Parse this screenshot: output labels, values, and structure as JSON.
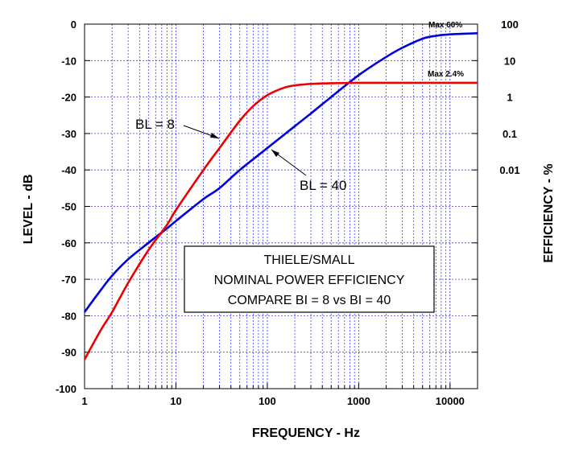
{
  "chart_data": {
    "type": "line",
    "title_box": [
      "THIELE/SMALL",
      "NOMINAL POWER EFFICIENCY",
      "COMPARE BI = 8 vs BI = 40"
    ],
    "xlabel": "FREQUENCY - Hz",
    "ylabel": "LEVEL - dB",
    "y2label": "EFFICIENCY - %",
    "x_scale": "log",
    "xlim": [
      1,
      20000
    ],
    "ylim": [
      -100,
      0
    ],
    "x_ticks": [
      "1",
      "10",
      "100",
      "1000",
      "10000"
    ],
    "y_ticks": [
      "0",
      "-10",
      "-20",
      "-30",
      "-40",
      "-50",
      "-60",
      "-70",
      "-80",
      "-90",
      "-100"
    ],
    "y2_ticks": [
      "100",
      "10",
      "1",
      "0.1",
      "0.01"
    ],
    "grid": true,
    "annotations": [
      {
        "text": "BL = 8",
        "series": "red"
      },
      {
        "text": "BL = 40",
        "series": "blue"
      },
      {
        "text": "Max 60%",
        "series": "blue"
      },
      {
        "text": "Max 2.4%",
        "series": "red"
      }
    ],
    "series": [
      {
        "color": "#0000dd",
        "x": [
          1,
          1.5,
          2,
          3,
          5,
          8,
          10,
          20,
          30,
          50,
          100,
          200,
          300,
          500,
          1000,
          2000,
          3000,
          5000,
          7000,
          10000,
          15000,
          20000
        ],
        "y": [
          -79,
          -73,
          -69,
          -64.5,
          -60,
          -56,
          -54,
          -48,
          -45,
          -40,
          -34,
          -28,
          -24.5,
          -20,
          -14,
          -9,
          -6.5,
          -4,
          -3.2,
          -2.8,
          -2.6,
          -2.5
        ]
      },
      {
        "color": "#ee0000",
        "x": [
          1,
          1.5,
          2,
          3,
          5,
          8,
          10,
          20,
          30,
          50,
          70,
          100,
          150,
          200,
          300,
          500,
          1000,
          2000,
          5000,
          10000,
          20000
        ],
        "y": [
          -92,
          -84,
          -79,
          -71,
          -62,
          -55,
          -51,
          -40,
          -34,
          -26.5,
          -22.5,
          -19.5,
          -17.5,
          -16.8,
          -16.4,
          -16.2,
          -16.1,
          -16.1,
          -16.1,
          -16.1,
          -16.1
        ]
      }
    ]
  }
}
